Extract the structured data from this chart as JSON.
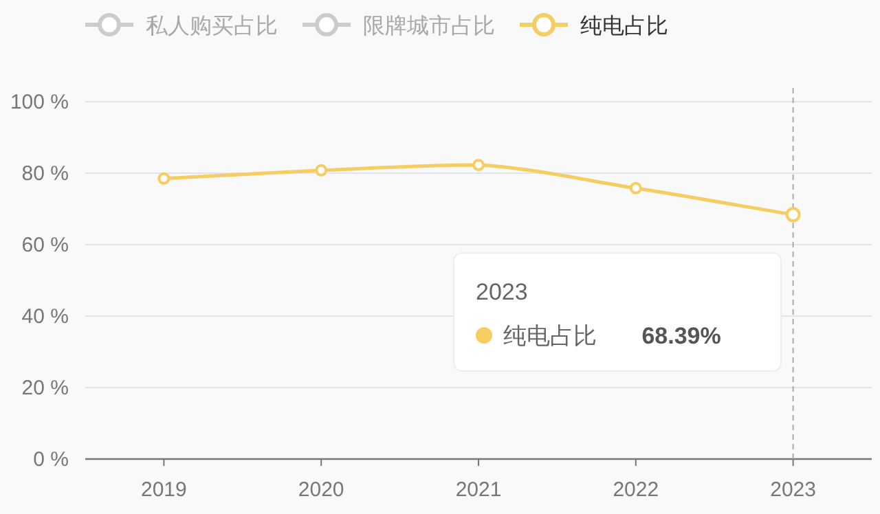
{
  "chart_data": {
    "type": "line",
    "categories": [
      "2019",
      "2020",
      "2021",
      "2022",
      "2023"
    ],
    "series": [
      {
        "name": "私人购买占比",
        "color": "#cccccc",
        "values": [
          null,
          null,
          null,
          null,
          null
        ]
      },
      {
        "name": "限牌城市占比",
        "color": "#cccccc",
        "values": [
          null,
          null,
          null,
          null,
          null
        ]
      },
      {
        "name": "纯电占比",
        "color": "#f5cd63",
        "values": [
          78.5,
          80.8,
          82.3,
          75.8,
          68.39
        ]
      }
    ],
    "ylim": [
      0,
      100
    ],
    "yticks": [
      {
        "value": 0,
        "label": "0 %"
      },
      {
        "value": 20,
        "label": "20 %"
      },
      {
        "value": 40,
        "label": "40 %"
      },
      {
        "value": 60,
        "label": "60 %"
      },
      {
        "value": 80,
        "label": "80 %"
      },
      {
        "value": 100,
        "label": "100 %"
      }
    ],
    "grid": "y",
    "legend": "top",
    "marker": "circle",
    "line_style": "solid",
    "ref_lines": [
      {
        "axis": "x",
        "value": "2023",
        "color": "#aaaaaa",
        "line_style": "dashed"
      }
    ],
    "annotations": [
      "2023",
      "纯电占比 68.39%"
    ]
  }
}
